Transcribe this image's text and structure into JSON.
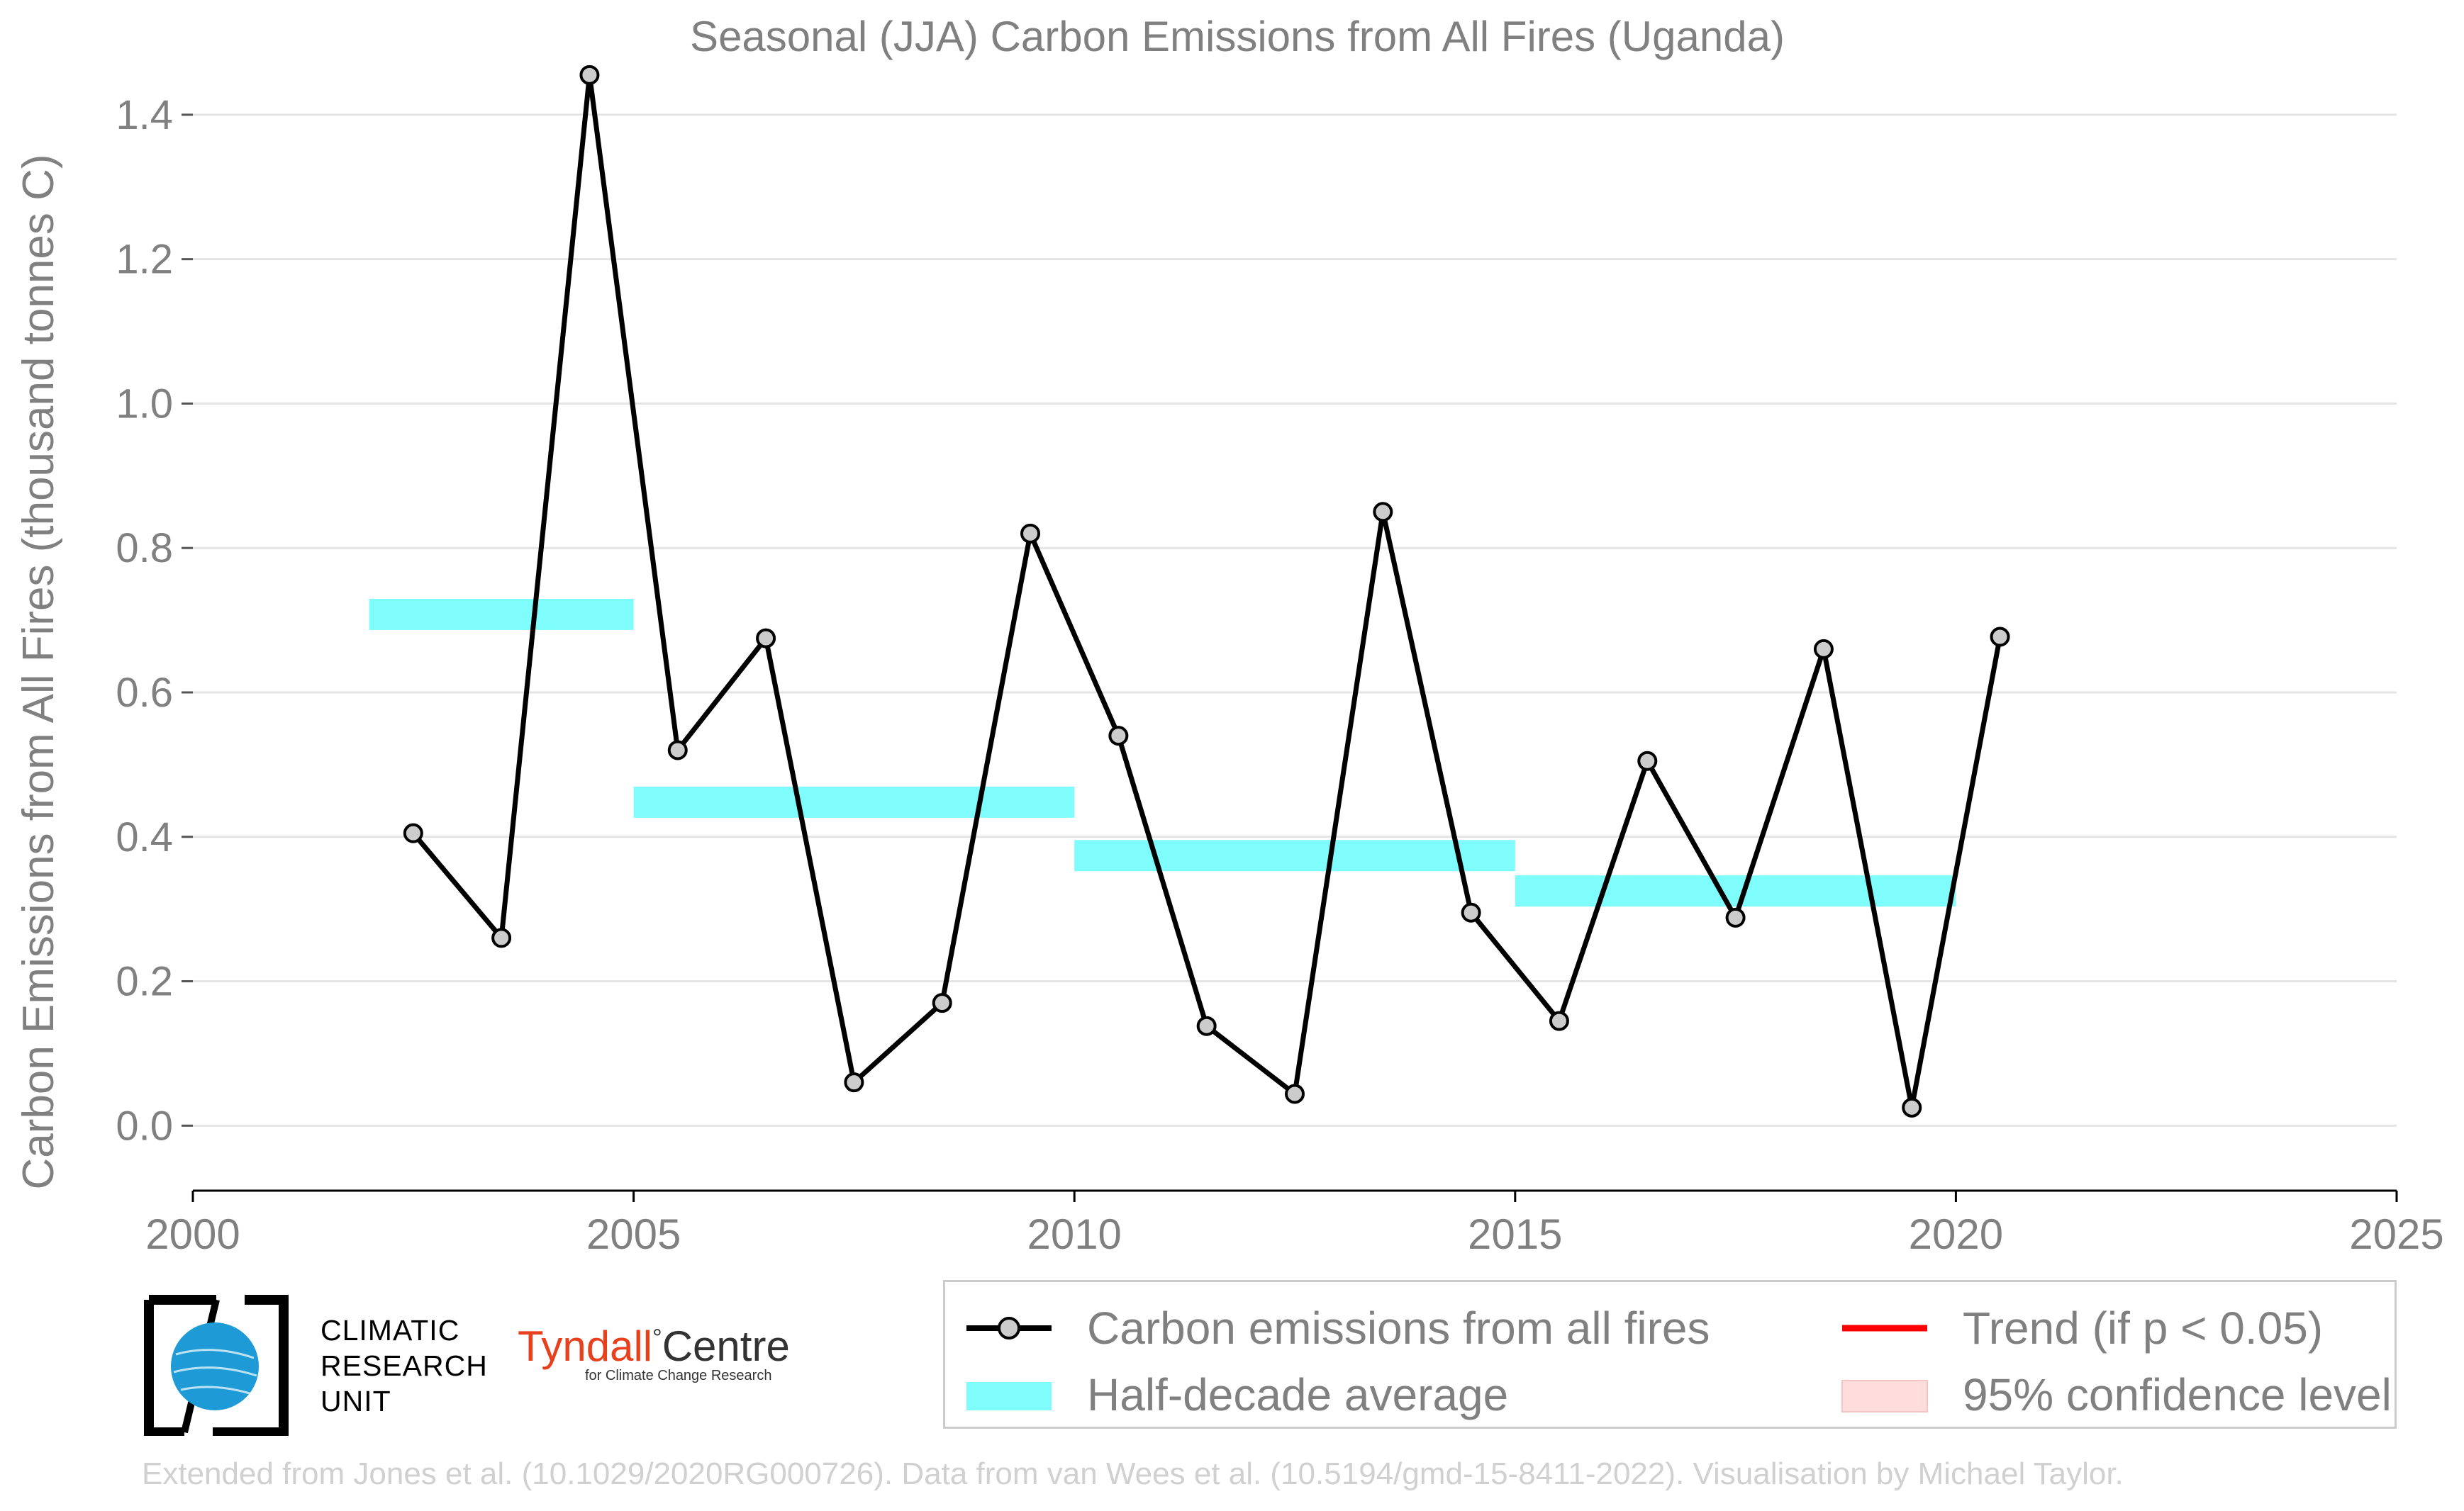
{
  "chart_data": {
    "type": "line",
    "title": "Seasonal (JJA) Carbon Emissions from All Fires (Uganda)",
    "xlabel": "",
    "ylabel": "Carbon Emissions from All Fires (thousand tonnes C)",
    "xlim": [
      2000,
      2025
    ],
    "ylim": [
      -0.09,
      1.5
    ],
    "xticks": [
      2000,
      2005,
      2010,
      2015,
      2020,
      2025
    ],
    "yticks": [
      0.0,
      0.2,
      0.4,
      0.6,
      0.8,
      1.0,
      1.2,
      1.4
    ],
    "ytick_labels": [
      "0.0",
      "0.2",
      "0.4",
      "0.6",
      "0.8",
      "1.0",
      "1.2",
      "1.4"
    ],
    "grid": "horizontal",
    "legend_position": "bottom-right",
    "series": [
      {
        "name": "Carbon emissions from all fires",
        "color": "#000000",
        "marker_color": "#cccccc",
        "x": [
          2002.5,
          2003.5,
          2004.5,
          2005.5,
          2006.5,
          2007.5,
          2008.5,
          2009.5,
          2010.5,
          2011.5,
          2012.5,
          2013.5,
          2014.5,
          2015.5,
          2016.5,
          2017.5,
          2018.5,
          2019.5,
          2020.5
        ],
        "y": [
          0.405,
          0.26,
          1.455,
          0.52,
          0.675,
          0.06,
          0.17,
          0.82,
          0.54,
          0.138,
          0.044,
          0.85,
          0.295,
          0.145,
          0.505,
          0.288,
          0.66,
          0.025,
          0.677
        ]
      }
    ],
    "half_decade_averages": {
      "name": "Half-decade average",
      "color": "#7ffcfc",
      "segments": [
        {
          "x0": 2002,
          "x1": 2005,
          "y": 0.708
        },
        {
          "x0": 2005,
          "x1": 2010,
          "y": 0.448
        },
        {
          "x0": 2010,
          "x1": 2015,
          "y": 0.374
        },
        {
          "x0": 2015,
          "x1": 2020,
          "y": 0.325
        }
      ]
    }
  },
  "legend": {
    "series_label": "Carbon emissions from all fires",
    "average_label": "Half-decade average",
    "trend_label": "Trend (if p < 0.05)",
    "confidence_label": "95% confidence level",
    "trend_color": "#ff0000",
    "confidence_color": "#ffdddd"
  },
  "logos": {
    "cru_lines": [
      "CLIMATIC",
      "RESEARCH",
      "UNIT"
    ],
    "tyndall_main": "Tyndall",
    "tyndall_degree": "°",
    "tyndall_centre": "Centre",
    "tyndall_sub": "for Climate Change Research"
  },
  "credit": "Extended from Jones et al. (10.1029/2020RG000726). Data from van Wees et al. (10.5194/gmd-15-8411-2022). Visualisation by Michael Taylor."
}
